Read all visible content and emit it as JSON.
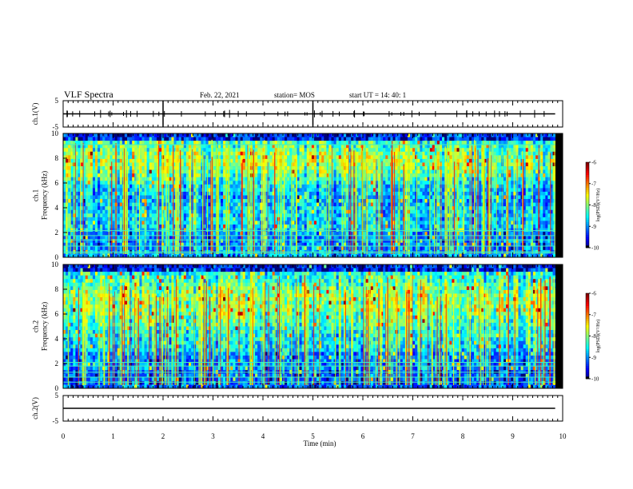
{
  "header": {
    "title": "VLF Spectra",
    "date": "Feb. 22, 2021",
    "station": "station= MOS",
    "start": "start  UT =   14: 40: 1"
  },
  "chart_data": [
    {
      "type": "line",
      "name": "waveform-ch1",
      "ylabel": "ch.1(V)",
      "ylim": [
        -5,
        5
      ],
      "yticks": [
        "5",
        "-5"
      ],
      "xlim": [
        0,
        10
      ],
      "series": [
        {
          "x": [
            0,
            9.85
          ],
          "y": [
            0,
            0
          ]
        }
      ]
    },
    {
      "type": "heatmap",
      "name": "spectrogram-ch1",
      "ylabel": "ch.1\nFrequency (kHz)",
      "ylim": [
        0,
        10
      ],
      "yticks": [
        "0",
        "2",
        "4",
        "6",
        "8",
        "10"
      ],
      "xlim": [
        0,
        10
      ],
      "data_x_end": 9.85,
      "colorbar": {
        "label": "log(PSD)(V²/Hz)",
        "range": [
          -10,
          -6
        ],
        "ticks": [
          "-6",
          "-7",
          "-8",
          "-9",
          "-10"
        ]
      }
    },
    {
      "type": "heatmap",
      "name": "spectrogram-ch2",
      "ylabel": "ch.2\nFrequency (kHz)",
      "ylim": [
        0,
        10
      ],
      "yticks": [
        "0",
        "2",
        "4",
        "6",
        "8",
        "10"
      ],
      "xlim": [
        0,
        10
      ],
      "data_x_end": 9.85,
      "colorbar": {
        "label": "log(PSD)(V²/Hz)",
        "range": [
          -10,
          -6
        ],
        "ticks": [
          "-6",
          "-7",
          "-8",
          "-9",
          "-10"
        ]
      }
    },
    {
      "type": "line",
      "name": "waveform-ch2",
      "ylabel": "ch.2(V)",
      "ylim": [
        -5,
        5
      ],
      "yticks": [
        "5",
        "-5"
      ],
      "xlim": [
        0,
        10
      ],
      "xlabel": "Time (min)",
      "xticks": [
        "0",
        "1",
        "2",
        "3",
        "4",
        "5",
        "6",
        "7",
        "8",
        "9",
        "10"
      ],
      "series": [
        {
          "x": [
            0,
            9.85
          ],
          "y": [
            0,
            0
          ]
        }
      ]
    }
  ]
}
